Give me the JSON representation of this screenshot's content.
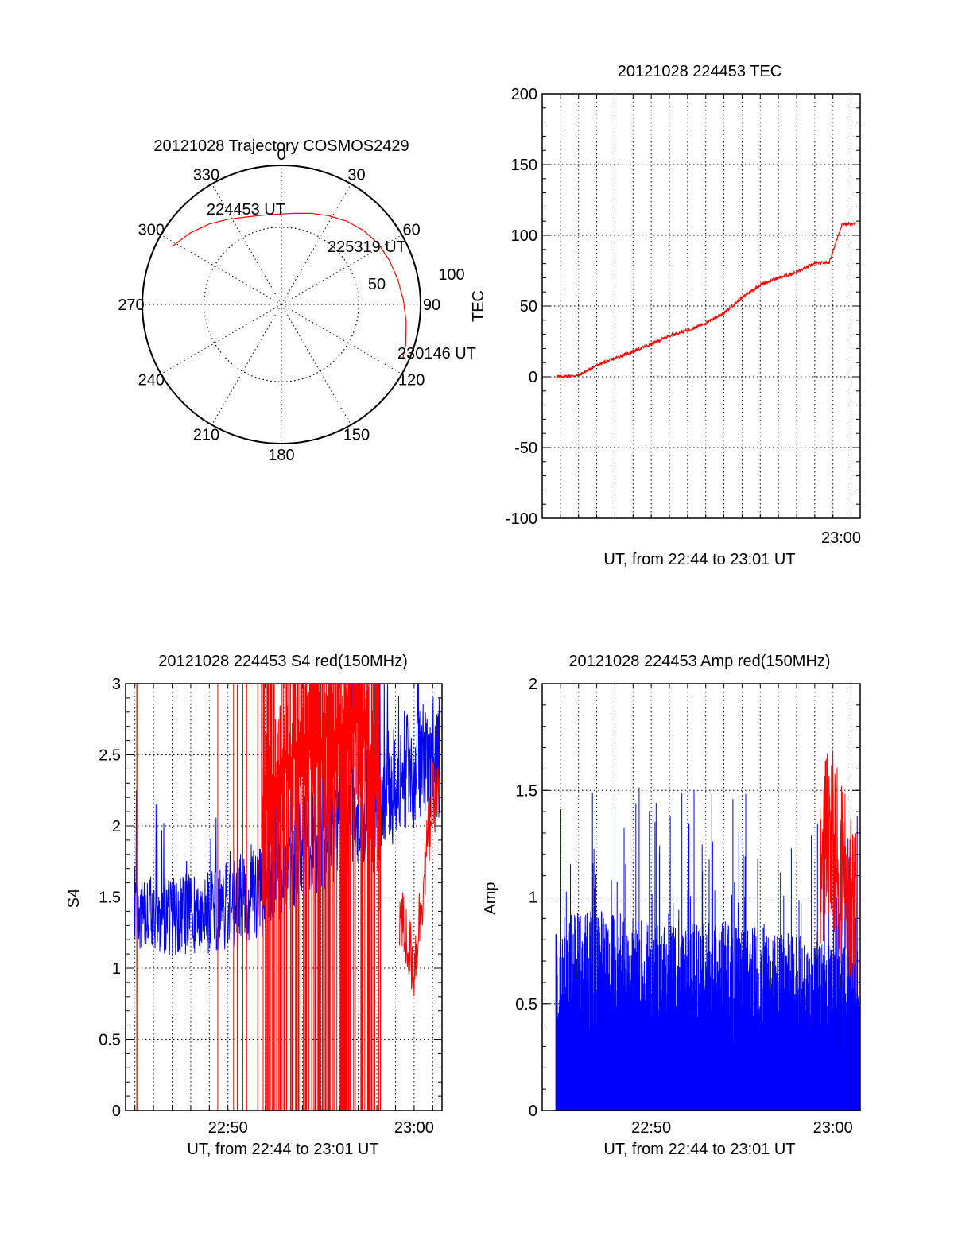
{
  "chart_data": [
    {
      "type": "polar",
      "title": "20121028 Trajectory COSMOS2429",
      "azimuth_labels": [
        "0",
        "30",
        "60",
        "90",
        "120",
        "150",
        "180",
        "210",
        "240",
        "270",
        "300",
        "330"
      ],
      "radius_labels": [
        "50",
        "100"
      ],
      "start_label": "224453 UT",
      "mid_label": "225319 UT",
      "end_label": "230146 UT",
      "trajectory": [
        {
          "az": 298,
          "zen": 80
        },
        {
          "az": 308,
          "zen": 75
        },
        {
          "az": 318,
          "zen": 70
        },
        {
          "az": 328,
          "zen": 65
        },
        {
          "az": 338,
          "zen": 61
        },
        {
          "az": 348,
          "zen": 59
        },
        {
          "az": 358,
          "zen": 58.5
        },
        {
          "az": 8,
          "zen": 59.5
        },
        {
          "az": 18,
          "zen": 62
        },
        {
          "az": 28,
          "zen": 65
        },
        {
          "az": 38,
          "zen": 68.5
        },
        {
          "az": 48,
          "zen": 71.5
        },
        {
          "az": 58,
          "zen": 74
        },
        {
          "az": 68,
          "zen": 75.5
        },
        {
          "az": 78,
          "zen": 77
        },
        {
          "az": 88,
          "zen": 79
        },
        {
          "az": 98,
          "zen": 81.5
        },
        {
          "az": 108,
          "zen": 84.5
        },
        {
          "az": 114,
          "zen": 86
        }
      ],
      "line_color": "#ff0000"
    },
    {
      "type": "line",
      "title": "20121028 224453 TEC",
      "ylabel": "TEC",
      "xlabel": "UT, from 22:44 to 23:01 UT",
      "ylim": [
        -100,
        200
      ],
      "y_ticks": [
        "-100",
        "-50",
        "0",
        "50",
        "100",
        "150",
        "200"
      ],
      "x_tick_labels": [
        "23:00"
      ],
      "x_range_min": [
        1364,
        1381.5
      ],
      "x": [
        1364.75,
        1366,
        1367,
        1368,
        1369,
        1370,
        1371,
        1372,
        1373,
        1374,
        1375,
        1376,
        1377,
        1378,
        1379,
        1379.8,
        1380.5,
        1381.3
      ],
      "y": [
        0,
        1,
        8,
        13,
        18,
        23,
        29,
        33,
        38,
        45,
        56,
        65,
        70,
        74,
        80,
        81,
        108,
        108
      ],
      "grid": true,
      "line_color": "#ff0000"
    },
    {
      "type": "line",
      "title": "20121028 224453 S4 red(150MHz)",
      "ylabel": "S4",
      "xlabel": "UT, from 22:44 to 23:01 UT",
      "ylim": [
        0,
        3
      ],
      "y_ticks": [
        "0",
        "0.5",
        "1",
        "1.5",
        "2",
        "2.5",
        "3"
      ],
      "x_tick_labels": [
        "22:50",
        "23:00"
      ],
      "x_ticks_min": [
        1370,
        1380
      ],
      "x_range_min": [
        1364.5,
        1381.5
      ],
      "series": [
        {
          "color": "#0000ff",
          "x": [
            1365,
            1366,
            1367,
            1368,
            1369,
            1370,
            1371,
            1372,
            1373,
            1374,
            1375,
            1376,
            1377,
            1378,
            1379,
            1380,
            1381
          ],
          "y": [
            1.35,
            1.4,
            1.35,
            1.38,
            1.4,
            1.45,
            1.5,
            1.55,
            1.7,
            1.85,
            1.9,
            2.0,
            2.1,
            2.2,
            2.3,
            2.4,
            2.5
          ]
        },
        {
          "color": "#ff0000",
          "x": [
            1365,
            1368,
            1370,
            1372,
            1373,
            1374,
            1375,
            1376,
            1377,
            1378,
            1379,
            1380,
            1381
          ],
          "y": [
            1.5,
            1.6,
            1.6,
            2.2,
            2.4,
            2.6,
            2.6,
            2.7,
            2.8,
            2.3,
            1.5,
            1.0,
            2.2
          ]
        }
      ],
      "grid": true
    },
    {
      "type": "area",
      "title": "20121028 224453 Amp red(150MHz)",
      "ylabel": "Amp",
      "xlabel": "UT, from 22:44 to 23:01 UT",
      "ylim": [
        0,
        2
      ],
      "y_ticks": [
        "0",
        "0.5",
        "1",
        "1.5",
        "2"
      ],
      "x_tick_labels": [
        "22:50",
        "23:00"
      ],
      "x_ticks_min": [
        1370,
        1380
      ],
      "x_range_min": [
        1364,
        1381.5
      ],
      "series": [
        {
          "color": "#0000ff",
          "x": [
            1364.75,
            1366,
            1368,
            1370,
            1372,
            1374,
            1376,
            1378,
            1380,
            1381.5
          ],
          "y": [
            0.8,
            0.85,
            0.85,
            0.8,
            0.8,
            0.8,
            0.78,
            0.75,
            0.7,
            0.7
          ]
        },
        {
          "color": "#ff0000",
          "x": [
            1379.3,
            1379.8,
            1380.3,
            1380.8,
            1381.3
          ],
          "y": [
            1.0,
            1.3,
            1.1,
            1.0,
            0.9
          ]
        }
      ],
      "grid": true
    }
  ]
}
